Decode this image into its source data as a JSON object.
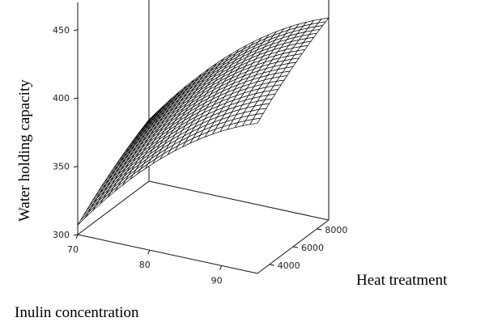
{
  "chart_data": {
    "type": "surface",
    "title": "",
    "xlabel": "Inulin concentration",
    "ylabel": "Heat treatment",
    "zlabel": "Water holding capacity",
    "x_ticks": [
      "70",
      "80",
      "90"
    ],
    "y_ticks": [
      "4000",
      "6000",
      "8000"
    ],
    "z_ticks": [
      "300",
      "350",
      "400",
      "450"
    ],
    "xlim": [
      70,
      95
    ],
    "ylim": [
      3000,
      9000
    ],
    "zlim": [
      300,
      470
    ],
    "grid": false,
    "model": {
      "form": "quadratic",
      "description_values": {
        "x": [
          70,
          95
        ],
        "y": [
          3000,
          9000
        ],
        "z_at_70_3000": 307,
        "z_at_70_9000": 345,
        "z_at_95_3000": 410,
        "z_at_95_9000": 448
      }
    }
  }
}
